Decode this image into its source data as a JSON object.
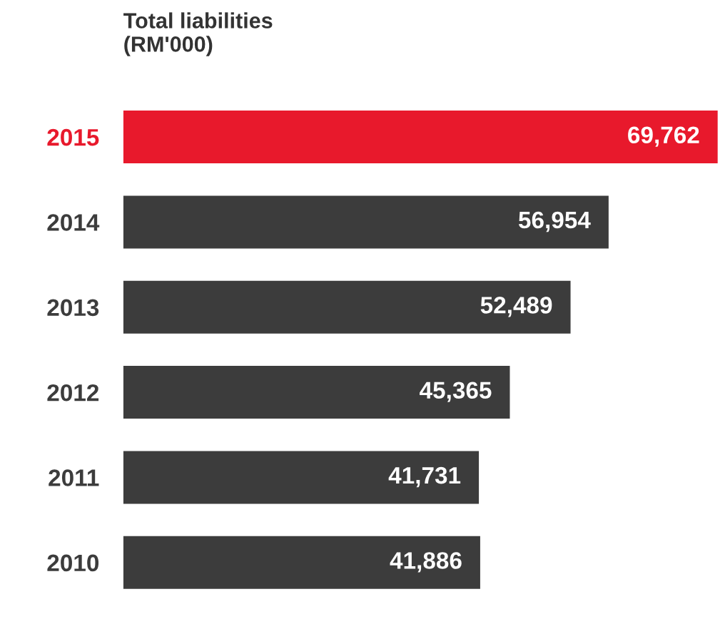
{
  "chart_data": {
    "type": "bar",
    "orientation": "horizontal",
    "title": "Total liabilities\n(RM'000)",
    "categories": [
      "2015",
      "2014",
      "2013",
      "2012",
      "2011",
      "2010"
    ],
    "values": [
      69762,
      56954,
      52489,
      45365,
      41731,
      41886
    ],
    "colors": [
      "#e8192c",
      "#3c3c3c",
      "#3c3c3c",
      "#3c3c3c",
      "#3c3c3c",
      "#3c3c3c"
    ],
    "value_labels": [
      "69,762",
      "56,954",
      "52,489",
      "45,365",
      "41,731",
      "41,886"
    ],
    "tick_labels": "y",
    "grid": false,
    "legend": false
  }
}
